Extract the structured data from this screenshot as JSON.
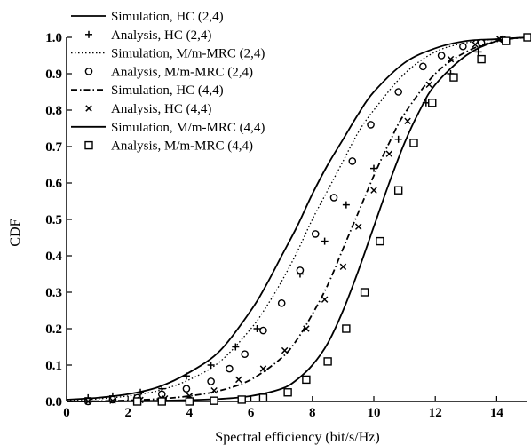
{
  "chart_data": {
    "type": "line",
    "title": "",
    "xlabel": "Spectral efficiency (bit/s/Hz)",
    "ylabel": "CDF",
    "xlim": [
      0,
      15
    ],
    "ylim": [
      0,
      1.0
    ],
    "xticks": [
      0,
      2,
      4,
      6,
      8,
      10,
      12,
      14
    ],
    "xtick_labels": [
      "0",
      "2",
      "4",
      "6",
      "8",
      "10",
      "12",
      "14"
    ],
    "yticks": [
      0,
      0.1,
      0.2,
      0.3,
      0.4,
      0.5,
      0.6,
      0.7,
      0.8,
      0.9,
      1.0
    ],
    "ytick_labels": [
      "0.0",
      "0.1",
      "0.2",
      "0.3",
      "0.4",
      "0.5",
      "0.6",
      "0.7",
      "0.8",
      "0.9",
      "1.0"
    ],
    "grid": false,
    "legend_position": "top-left",
    "series": [
      {
        "name": "Simulation, HC (2,4)",
        "style": "solid",
        "marker": "none",
        "x": [
          0,
          1,
          2,
          3,
          4,
          5,
          6,
          6.5,
          7,
          7.5,
          8,
          8.5,
          9,
          9.5,
          10,
          11,
          12,
          13,
          14,
          15
        ],
        "y": [
          0.005,
          0.01,
          0.02,
          0.04,
          0.08,
          0.14,
          0.25,
          0.32,
          0.4,
          0.48,
          0.57,
          0.65,
          0.72,
          0.79,
          0.85,
          0.93,
          0.97,
          0.99,
          0.995,
          1.0
        ]
      },
      {
        "name": "Analysis, HC (2,4)",
        "style": "none",
        "marker": "plus",
        "x": [
          0.7,
          1.5,
          2.4,
          3.1,
          3.9,
          4.7,
          5.5,
          6.2,
          7.0,
          7.6,
          8.4,
          9.1,
          10.0,
          10.8,
          11.7,
          12.5,
          13.4,
          14.2,
          15
        ],
        "y": [
          0.01,
          0.015,
          0.025,
          0.035,
          0.07,
          0.1,
          0.15,
          0.2,
          0.27,
          0.35,
          0.44,
          0.54,
          0.64,
          0.72,
          0.82,
          0.9,
          0.96,
          0.99,
          1.0
        ]
      },
      {
        "name": "Simulation, M/m-MRC (2,4)",
        "style": "dotted",
        "marker": "none",
        "x": [
          0,
          1,
          2,
          3,
          4,
          5,
          6,
          6.5,
          7,
          7.5,
          8,
          8.5,
          9,
          9.5,
          10,
          11,
          12,
          13,
          14,
          15
        ],
        "y": [
          0.003,
          0.007,
          0.015,
          0.03,
          0.06,
          0.11,
          0.2,
          0.26,
          0.33,
          0.41,
          0.5,
          0.58,
          0.66,
          0.74,
          0.8,
          0.9,
          0.96,
          0.985,
          0.995,
          1.0
        ]
      },
      {
        "name": "Analysis, M/m-MRC (2,4)",
        "style": "none",
        "marker": "circle",
        "x": [
          0.7,
          1.5,
          2.3,
          3.1,
          3.9,
          4.7,
          5.3,
          5.8,
          6.4,
          7.0,
          7.6,
          8.1,
          8.7,
          9.3,
          9.9,
          10.8,
          11.6,
          12.2,
          12.9,
          13.5,
          14.2
        ],
        "y": [
          0.0,
          0.005,
          0.01,
          0.02,
          0.035,
          0.055,
          0.09,
          0.13,
          0.195,
          0.27,
          0.36,
          0.46,
          0.56,
          0.66,
          0.76,
          0.85,
          0.92,
          0.95,
          0.975,
          0.985,
          0.995
        ]
      },
      {
        "name": "Simulation, HC (4,4)",
        "style": "dashdot",
        "marker": "none",
        "x": [
          0,
          1,
          2,
          3,
          4,
          5,
          6,
          7,
          7.5,
          8,
          8.5,
          9,
          9.5,
          10,
          10.5,
          11,
          12,
          13,
          14,
          15
        ],
        "y": [
          0.0,
          0.001,
          0.003,
          0.007,
          0.015,
          0.03,
          0.06,
          0.12,
          0.17,
          0.24,
          0.32,
          0.42,
          0.52,
          0.62,
          0.71,
          0.79,
          0.9,
          0.96,
          0.99,
          1.0
        ]
      },
      {
        "name": "Analysis, HC (4,4)",
        "style": "none",
        "marker": "x",
        "x": [
          0.7,
          1.5,
          2.4,
          3.2,
          4.0,
          4.8,
          5.6,
          6.4,
          7.1,
          7.8,
          8.4,
          9.0,
          9.5,
          10.0,
          10.5,
          11.1,
          11.8,
          12.5,
          13.3,
          14.1,
          15
        ],
        "y": [
          0.0,
          0.002,
          0.004,
          0.008,
          0.015,
          0.03,
          0.06,
          0.09,
          0.14,
          0.2,
          0.28,
          0.37,
          0.48,
          0.58,
          0.68,
          0.77,
          0.87,
          0.94,
          0.98,
          0.995,
          1.0
        ]
      },
      {
        "name": "Simulation, M/m-MRC (4,4)",
        "style": "solid",
        "marker": "none",
        "x": [
          0,
          1,
          2,
          3,
          4,
          5,
          6,
          7,
          7.5,
          8,
          8.5,
          9,
          9.5,
          10,
          10.5,
          11,
          11.5,
          12,
          13,
          14,
          15
        ],
        "y": [
          0.0,
          0.0,
          0.001,
          0.002,
          0.004,
          0.007,
          0.015,
          0.035,
          0.06,
          0.1,
          0.16,
          0.25,
          0.36,
          0.48,
          0.6,
          0.71,
          0.8,
          0.87,
          0.95,
          0.99,
          1.0
        ]
      },
      {
        "name": "Analysis, M/m-MRC (4,4)",
        "style": "none",
        "marker": "square",
        "x": [
          2.3,
          3.1,
          4.0,
          4.8,
          5.7,
          6.4,
          7.2,
          7.8,
          8.5,
          9.1,
          9.7,
          10.2,
          10.8,
          11.3,
          11.9,
          12.6,
          13.5,
          14.3,
          15
        ],
        "y": [
          0.0,
          0.0,
          0.0,
          0.002,
          0.005,
          0.01,
          0.025,
          0.06,
          0.11,
          0.2,
          0.3,
          0.44,
          0.58,
          0.71,
          0.82,
          0.89,
          0.94,
          0.99,
          1.0
        ]
      }
    ]
  }
}
